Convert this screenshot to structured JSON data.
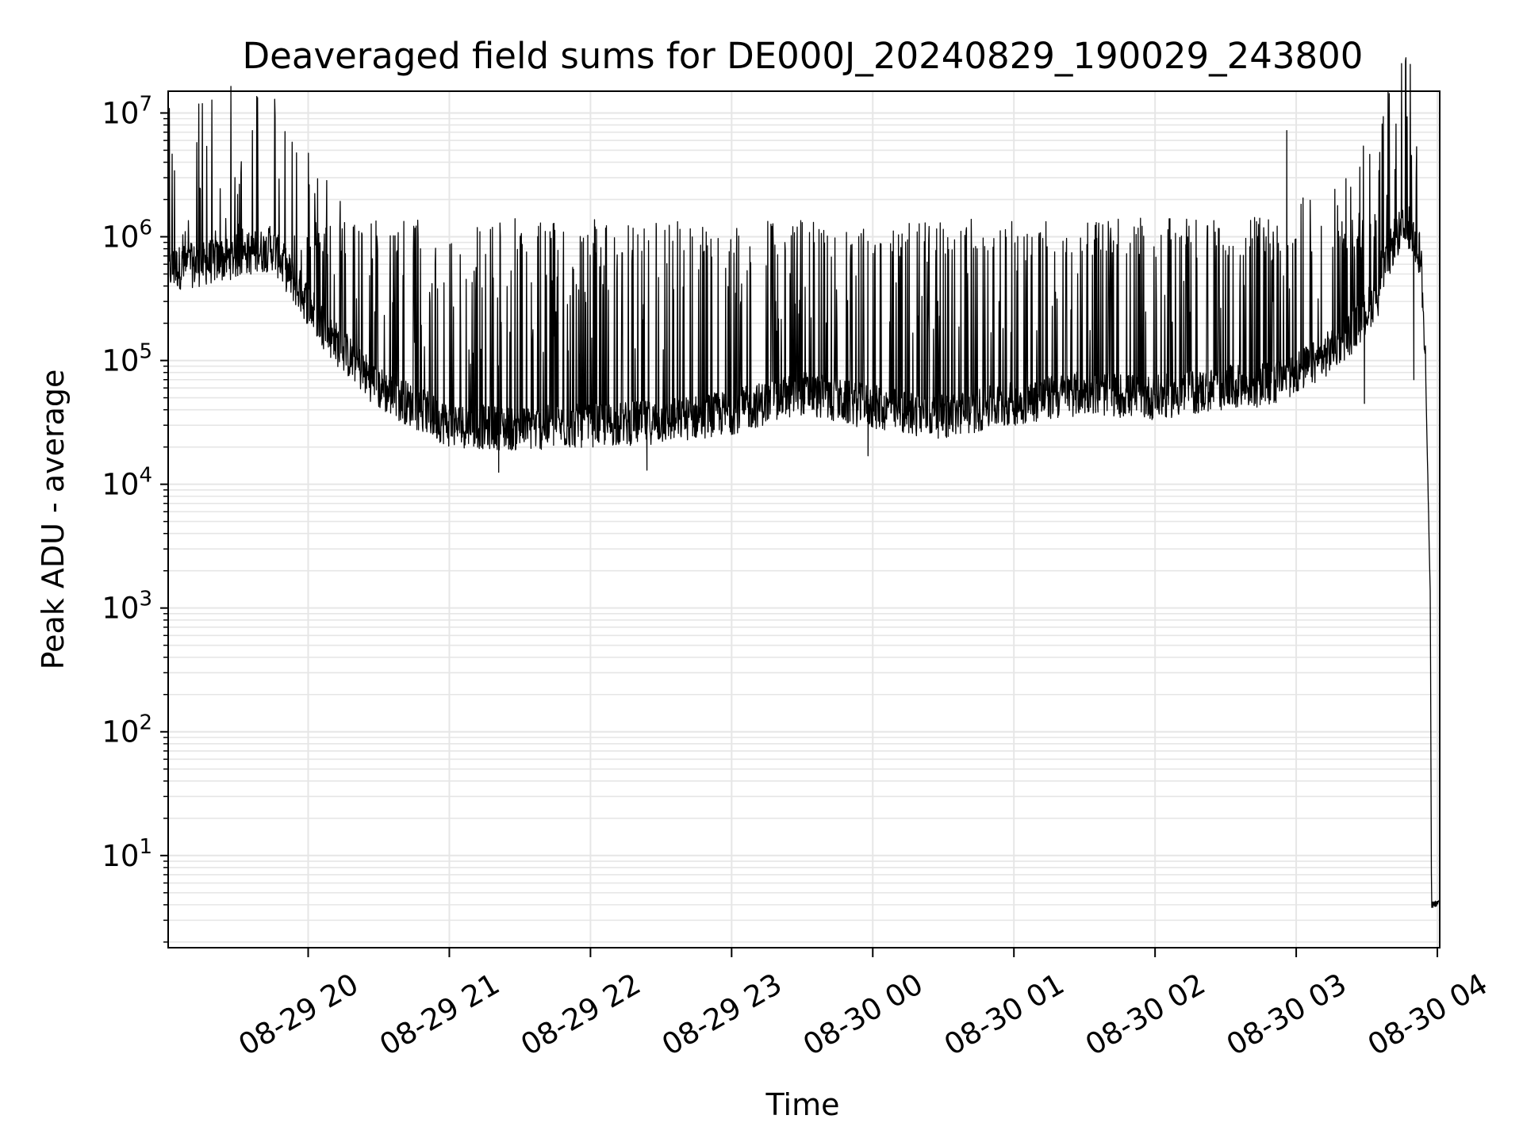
{
  "chart_data": {
    "type": "line",
    "title": "Deaveraged field sums for DE000J_20240829_190029_243800",
    "xlabel": "Time",
    "ylabel": "Peak ADU - average",
    "yscale": "log",
    "ylim": [
      1.8,
      15000000
    ],
    "xlim": [
      "2024-08-29 19:00:29",
      "2024-08-30 04:01:00"
    ],
    "grid": true,
    "line_color": "#000000",
    "x_ticks": [
      {
        "label": "08-29 20",
        "time": "2024-08-29 20:00"
      },
      {
        "label": "08-29 21",
        "time": "2024-08-29 21:00"
      },
      {
        "label": "08-29 22",
        "time": "2024-08-29 22:00"
      },
      {
        "label": "08-29 23",
        "time": "2024-08-29 23:00"
      },
      {
        "label": "08-30 00",
        "time": "2024-08-30 00:00"
      },
      {
        "label": "08-30 01",
        "time": "2024-08-30 01:00"
      },
      {
        "label": "08-30 02",
        "time": "2024-08-30 02:00"
      },
      {
        "label": "08-30 03",
        "time": "2024-08-30 03:00"
      },
      {
        "label": "08-30 04",
        "time": "2024-08-30 04:00"
      }
    ],
    "y_ticks": [
      {
        "base": "10",
        "exp": "1",
        "value": 10
      },
      {
        "base": "10",
        "exp": "2",
        "value": 100
      },
      {
        "base": "10",
        "exp": "3",
        "value": 1000
      },
      {
        "base": "10",
        "exp": "4",
        "value": 10000
      },
      {
        "base": "10",
        "exp": "5",
        "value": 100000
      },
      {
        "base": "10",
        "exp": "6",
        "value": 1000000
      },
      {
        "base": "10",
        "exp": "7",
        "value": 10000000
      }
    ],
    "series": [
      {
        "baseline": [
          [
            "2024-08-29 19:00:29",
            550000
          ],
          [
            "2024-08-29 19:15",
            600000
          ],
          [
            "2024-08-29 19:30",
            700000
          ],
          [
            "2024-08-29 19:45",
            800000
          ],
          [
            "2024-08-29 19:55",
            400000
          ],
          [
            "2024-08-29 20:10",
            150000
          ],
          [
            "2024-08-29 20:30",
            60000
          ],
          [
            "2024-08-29 21:00",
            30000
          ],
          [
            "2024-08-29 21:30",
            28000
          ],
          [
            "2024-08-29 22:00",
            30000
          ],
          [
            "2024-08-29 22:30",
            32000
          ],
          [
            "2024-08-29 23:00",
            38000
          ],
          [
            "2024-08-29 23:30",
            55000
          ],
          [
            "2024-08-29 23:50",
            45000
          ],
          [
            "2024-08-30 00:15",
            38000
          ],
          [
            "2024-08-30 00:30",
            35000
          ],
          [
            "2024-08-30 01:00",
            45000
          ],
          [
            "2024-08-30 01:30",
            55000
          ],
          [
            "2024-08-30 02:00",
            50000
          ],
          [
            "2024-08-30 02:30",
            60000
          ],
          [
            "2024-08-30 02:50",
            65000
          ],
          [
            "2024-08-30 03:10",
            100000
          ],
          [
            "2024-08-30 03:25",
            180000
          ],
          [
            "2024-08-30 03:35",
            350000
          ],
          [
            "2024-08-30 03:42",
            1000000
          ],
          [
            "2024-08-30 03:48",
            1200000
          ],
          [
            "2024-08-30 03:53",
            700000
          ],
          [
            "2024-08-30 03:55",
            80000
          ],
          [
            "2024-08-30 03:57",
            1200
          ],
          [
            "2024-08-30 03:57:30",
            4
          ],
          [
            "2024-08-30 04:01:00",
            4.2
          ]
        ],
        "spikes": [
          [
            "2024-08-29 19:30",
            2200000
          ],
          [
            "2024-08-29 21:13",
            1100000
          ],
          [
            "2024-08-29 22:02",
            1200000
          ],
          [
            "2024-08-29 22:28",
            1150000
          ],
          [
            "2024-08-29 23:30",
            1300000
          ],
          [
            "2024-08-30 00:30",
            1150000
          ],
          [
            "2024-08-30 01:35",
            1300000
          ],
          [
            "2024-08-30 02:25",
            1350000
          ],
          [
            "2024-08-30 02:56",
            7200000
          ],
          [
            "2024-08-30 03:42",
            3500000
          ],
          [
            "2024-08-30 03:51",
            2700000
          ]
        ],
        "dips": [
          [
            "2024-08-29 21:21",
            12500
          ],
          [
            "2024-08-29 22:24",
            13000
          ],
          [
            "2024-08-29 23:58",
            17000
          ],
          [
            "2024-08-30 03:29",
            45000
          ],
          [
            "2024-08-30 03:50",
            70000
          ]
        ]
      }
    ]
  }
}
